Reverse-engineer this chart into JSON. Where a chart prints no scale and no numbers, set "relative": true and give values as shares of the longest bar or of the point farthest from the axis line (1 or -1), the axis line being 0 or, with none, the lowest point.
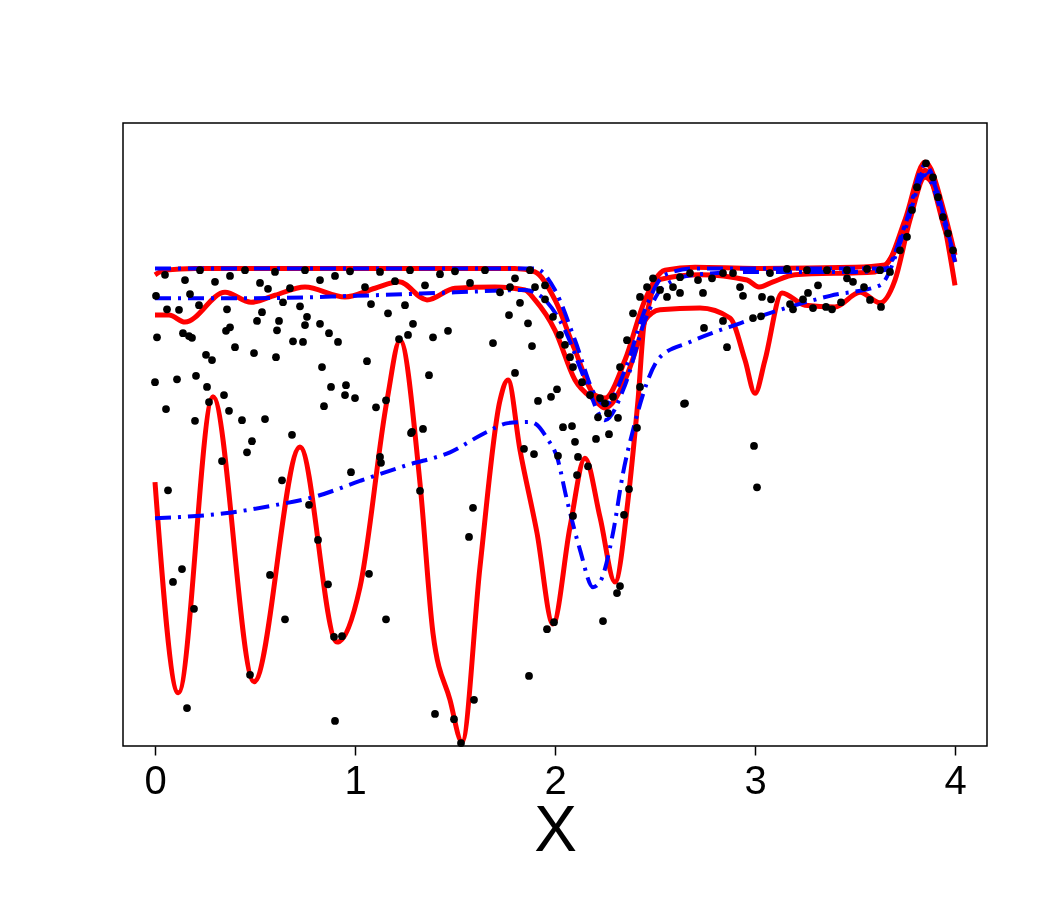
{
  "chart_data": {
    "type": "line",
    "xlabel": "X",
    "relative": true,
    "xlim": [
      -0.16,
      4.16
    ],
    "xticks": [
      0,
      1,
      2,
      3,
      4
    ],
    "tick_labels": "x",
    "series": [
      {
        "color": "#ff0000",
        "line_style": "solid",
        "x": [
          0,
          0.05,
          0.2,
          0.6,
          1.0,
          1.4,
          1.8,
          1.9,
          2.0,
          2.1,
          2.2,
          2.25,
          2.35,
          2.45,
          2.55,
          2.7,
          3.0,
          3.5,
          3.65,
          3.75,
          3.85,
          3.95,
          4.0
        ],
        "values": [
          0.807,
          0.815,
          0.818,
          0.818,
          0.818,
          0.818,
          0.818,
          0.812,
          0.764,
          0.678,
          0.601,
          0.596,
          0.661,
          0.764,
          0.815,
          0.82,
          0.818,
          0.82,
          0.824,
          0.901,
          1.0,
          0.909,
          0.841
        ]
      },
      {
        "color": "#ff0000",
        "line_style": "solid",
        "x": [
          0,
          0.07,
          0.15,
          0.35,
          0.48,
          0.6,
          0.75,
          0.95,
          1.1,
          1.22,
          1.36,
          1.5,
          1.7,
          1.85,
          1.9,
          2.0,
          2.1,
          2.2,
          2.25,
          2.35,
          2.45,
          2.51,
          2.725,
          2.96,
          3.02,
          3.09,
          3.2,
          3.6,
          3.75,
          3.85,
          3.95,
          4.0
        ],
        "values": [
          0.738,
          0.738,
          0.726,
          0.777,
          0.76,
          0.772,
          0.786,
          0.769,
          0.784,
          0.795,
          0.764,
          0.784,
          0.786,
          0.781,
          0.764,
          0.712,
          0.627,
          0.592,
          0.579,
          0.627,
          0.729,
          0.798,
          0.807,
          0.798,
          0.786,
          0.795,
          0.807,
          0.812,
          0.884,
          0.986,
          0.884,
          0.829
        ]
      },
      {
        "color": "#ff0000",
        "line_style": "solid",
        "x": [
          0,
          0.117,
          0.29,
          0.495,
          0.725,
          0.91,
          1.025,
          1.16,
          1.225,
          1.325,
          1.39,
          1.475,
          1.535,
          1.625,
          1.725,
          1.765,
          1.825,
          1.91,
          1.99,
          2.075,
          2.15,
          2.225,
          2.3,
          2.365,
          2.415,
          2.45,
          2.525,
          2.725,
          2.875,
          2.95,
          3.0,
          3.05,
          3.135,
          3.25,
          3.4,
          3.525,
          3.625,
          3.7,
          3.775,
          3.85,
          3.925,
          4.0
        ],
        "values": [
          0.452,
          0.091,
          0.598,
          0.11,
          0.512,
          0.178,
          0.272,
          0.592,
          0.695,
          0.45,
          0.193,
          0.079,
          0.007,
          0.307,
          0.592,
          0.627,
          0.507,
          0.365,
          0.209,
          0.375,
          0.493,
          0.392,
          0.281,
          0.421,
          0.592,
          0.729,
          0.747,
          0.75,
          0.733,
          0.661,
          0.604,
          0.661,
          0.776,
          0.755,
          0.752,
          0.777,
          0.759,
          0.798,
          0.901,
          0.974,
          0.926,
          0.789
        ]
      },
      {
        "color": "#0000ff",
        "line_style": "dashdot",
        "x": [
          0,
          0.6,
          1.2,
          1.9,
          2.0,
          2.1,
          2.2,
          2.25,
          2.35,
          2.45,
          2.55,
          2.7,
          3.2,
          3.65,
          3.75,
          3.85,
          3.95,
          4.0
        ],
        "values": [
          0.818,
          0.818,
          0.818,
          0.818,
          0.781,
          0.695,
          0.601,
          0.584,
          0.644,
          0.747,
          0.807,
          0.818,
          0.818,
          0.818,
          0.892,
          0.995,
          0.901,
          0.829
        ]
      },
      {
        "color": "#0000ff",
        "line_style": "dashdot",
        "x": [
          0,
          0.5,
          1.0,
          1.5,
          1.85,
          1.95,
          2.05,
          2.15,
          2.25,
          2.35,
          2.45,
          2.55,
          2.7,
          3.0,
          3.5,
          3.65,
          3.75,
          3.85,
          3.95,
          4.0
        ],
        "values": [
          0.767,
          0.767,
          0.771,
          0.777,
          0.781,
          0.764,
          0.712,
          0.627,
          0.558,
          0.618,
          0.729,
          0.789,
          0.807,
          0.812,
          0.812,
          0.815,
          0.892,
          0.986,
          0.901,
          0.829
        ]
      },
      {
        "color": "#0000ff",
        "line_style": "dashdot",
        "x": [
          0,
          0.125,
          0.36,
          0.575,
          0.81,
          1.025,
          1.26,
          1.475,
          1.66,
          1.765,
          1.875,
          1.91,
          1.96,
          2.01,
          2.06,
          2.125,
          2.19,
          2.225,
          2.29,
          2.34,
          2.39,
          2.525,
          2.675,
          2.925,
          3.125,
          3.375,
          3.625,
          3.75,
          3.85,
          3.95,
          4.0
        ],
        "values": [
          0.39,
          0.392,
          0.399,
          0.411,
          0.428,
          0.454,
          0.481,
          0.503,
          0.538,
          0.553,
          0.555,
          0.55,
          0.527,
          0.495,
          0.421,
          0.336,
          0.272,
          0.281,
          0.365,
          0.467,
          0.541,
          0.666,
          0.692,
          0.724,
          0.747,
          0.771,
          0.789,
          0.884,
          0.978,
          0.892,
          0.829
        ]
      },
      {
        "type": "scatter",
        "color": "#000000",
        "marker": "circle",
        "x": [
          0.055,
          0.065,
          0.09,
          0.135,
          0.16,
          0.195,
          0.2,
          0.27,
          0.335,
          0.37,
          0.435,
          0.46,
          0.485,
          0.475,
          0.55,
          0.575,
          0.635,
          0.65,
          0.685,
          0.77,
          0.815,
          0.865,
          0.845,
          0.9,
          0.895,
          0.935,
          0.98,
          1.07,
          1.105,
          1.125,
          1.13,
          1.155,
          1.285,
          1.34,
          1.325,
          1.4,
          1.59,
          1.57,
          1.495,
          1.595,
          1.53,
          1.845,
          1.895,
          1.87,
          1.96,
          1.995,
          2.04,
          2.085,
          2.1,
          2.015,
          2.115,
          2.11,
          2.09,
          2.165,
          2.205,
          2.27,
          2.315,
          2.24,
          2.31,
          2.325,
          2.345,
          2.37,
          2.41,
          2.645,
          2.995,
          3.01,
          0.01,
          0.0,
          0.11,
          0.14,
          0.17,
          0.185,
          0.205,
          0.255,
          0.285,
          0.26,
          0.345,
          0.4,
          0.355,
          0.375,
          0.495,
          0.605,
          0.61,
          0.62,
          0.535,
          0.51,
          0.36,
          0.12,
          0.06,
          0.005,
          0.175,
          0.22,
          0.565,
          0.64,
          0.725,
          0.75,
          0.76,
          0.69,
          0.74,
          0.825,
          0.87,
          0.915,
          0.835,
          0.88,
          0.955,
          0.95,
          1.0,
          1.06,
          1.08,
          1.155,
          1.165,
          1.22,
          1.25,
          1.265,
          1.29,
          1.28,
          0.05,
          0.15,
          0.225,
          0.3,
          0.375,
          0.45,
          0.525,
          0.6,
          0.675,
          0.75,
          0.825,
          0.9,
          0.975,
          1.05,
          1.125,
          1.2,
          1.275,
          1.35,
          1.425,
          1.5,
          1.575,
          1.65,
          1.725,
          1.8,
          1.875,
          1.95,
          1.775,
          1.865,
          1.885,
          1.8,
          1.69,
          1.465,
          1.39,
          1.37,
          1.77,
          1.825,
          1.9,
          1.95,
          1.99,
          2.025,
          2.05,
          2.075,
          2.09,
          2.135,
          2.175,
          2.225,
          2.25,
          2.265,
          2.29,
          2.325,
          2.36,
          2.39,
          2.425,
          2.46,
          2.49,
          2.525,
          2.56,
          2.59,
          2.625,
          2.675,
          2.715,
          2.65,
          2.01,
          1.98,
          1.915,
          2.215,
          2.425,
          2.86,
          2.745,
          2.84,
          2.99,
          3.03,
          2.94,
          3.035,
          2.925,
          3.08,
          3.175,
          3.19,
          3.24,
          3.265,
          3.29,
          3.355,
          3.385,
          3.43,
          3.46,
          3.49,
          3.545,
          3.575,
          3.63,
          3.675,
          3.725,
          3.76,
          3.785,
          3.81,
          3.855,
          3.89,
          3.915,
          3.94,
          3.965,
          3.99,
          3.315,
          2.785,
          2.84,
          2.89,
          3.075,
          3.16,
          3.26,
          3.36,
          3.46,
          3.56,
          3.625,
          2.625,
          2.74
        ],
        "values": [
          0.577,
          0.438,
          0.281,
          0.303,
          0.065,
          0.235,
          0.557,
          0.589,
          0.488,
          0.574,
          0.558,
          0.503,
          0.522,
          0.122,
          0.56,
          0.293,
          0.455,
          0.217,
          0.533,
          0.413,
          0.353,
          0.277,
          0.582,
          0.043,
          0.187,
          0.188,
          0.469,
          0.295,
          0.58,
          0.495,
          0.485,
          0.217,
          0.538,
          0.543,
          0.437,
          0.055,
          0.408,
          0.358,
          0.046,
          0.079,
          0.005,
          0.509,
          0.5,
          0.12,
          0.2,
          0.212,
          0.546,
          0.548,
          0.521,
          0.497,
          0.495,
          0.464,
          0.394,
          0.479,
          0.526,
          0.534,
          0.562,
          0.214,
          0.262,
          0.274,
          0.396,
          0.44,
          0.545,
          0.586,
          0.514,
          0.443,
          0.7,
          0.623,
          0.628,
          0.707,
          0.702,
          0.699,
          0.634,
          0.67,
          0.661,
          0.615,
          0.601,
          0.683,
          0.711,
          0.717,
          0.673,
          0.666,
          0.712,
          0.728,
          0.743,
          0.728,
          0.748,
          0.747,
          0.748,
          0.771,
          0.774,
          0.755,
          0.783,
          0.76,
          0.753,
          0.721,
          0.735,
          0.693,
          0.692,
          0.723,
          0.707,
          0.692,
          0.649,
          0.615,
          0.618,
          0.601,
          0.596,
          0.659,
          0.757,
          0.592,
          0.741,
          0.697,
          0.755,
          0.704,
          0.723,
          0.536,
          0.807,
          0.798,
          0.815,
          0.795,
          0.805,
          0.815,
          0.793,
          0.812,
          0.784,
          0.815,
          0.798,
          0.805,
          0.813,
          0.786,
          0.812,
          0.796,
          0.815,
          0.789,
          0.808,
          0.813,
          0.793,
          0.815,
          0.777,
          0.801,
          0.815,
          0.789,
          0.786,
          0.724,
          0.685,
          0.639,
          0.69,
          0.711,
          0.7,
          0.635,
          0.738,
          0.759,
          0.786,
          0.765,
          0.735,
          0.704,
          0.687,
          0.666,
          0.649,
          0.623,
          0.601,
          0.596,
          0.587,
          0.57,
          0.598,
          0.649,
          0.695,
          0.741,
          0.769,
          0.786,
          0.801,
          0.781,
          0.769,
          0.786,
          0.803,
          0.81,
          0.798,
          0.587,
          0.611,
          0.598,
          0.591,
          0.563,
          0.615,
          0.683,
          0.716,
          0.728,
          0.733,
          0.736,
          0.771,
          0.769,
          0.786,
          0.765,
          0.757,
          0.748,
          0.765,
          0.776,
          0.75,
          0.752,
          0.748,
          0.76,
          0.801,
          0.795,
          0.786,
          0.764,
          0.752,
          0.812,
          0.849,
          0.872,
          0.918,
          0.957,
          0.998,
          0.974,
          0.94,
          0.906,
          0.878,
          0.849,
          0.789,
          0.801,
          0.81,
          0.81,
          0.81,
          0.817,
          0.815,
          0.815,
          0.815,
          0.817,
          0.815,
          0.776,
          0.776
        ]
      }
    ]
  }
}
